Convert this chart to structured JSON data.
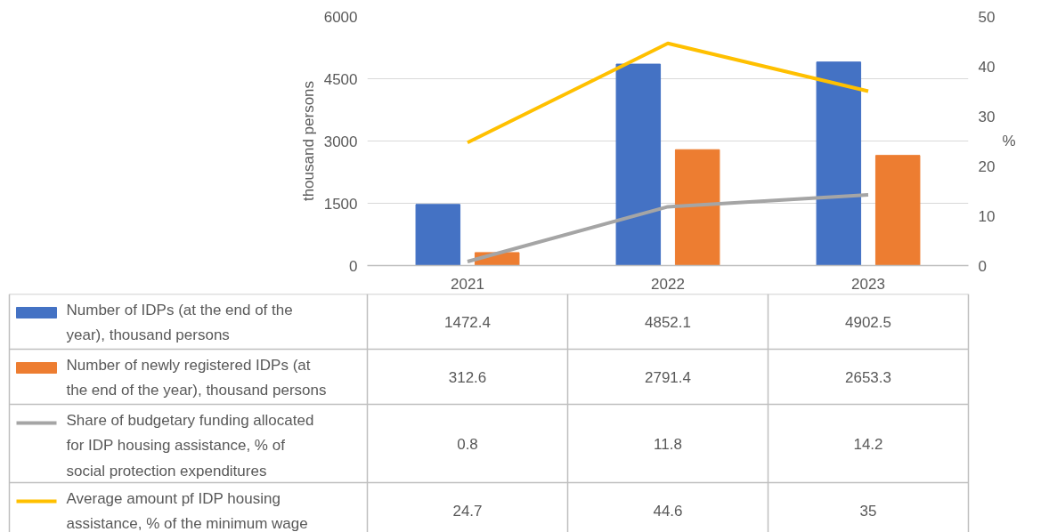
{
  "chart_data": {
    "type": "bar",
    "categories": [
      "2021",
      "2022",
      "2023"
    ],
    "ylabel": "thousand persons",
    "y2label": "%",
    "ylim": [
      0,
      6000
    ],
    "yticks": [
      0,
      1500,
      3000,
      4500,
      6000
    ],
    "y2lim": [
      0,
      50
    ],
    "y2ticks": [
      0,
      10,
      20,
      30,
      40,
      50
    ],
    "grid": "y",
    "legend": "bottom",
    "data_labels": true,
    "series": [
      {
        "name": "Number of IDPs (at the end of the year), thousand persons",
        "color": "#4472c4",
        "values": [
          1472.4,
          4852.1,
          4902.5
        ]
      },
      {
        "name": "Number of newly registered IDPs (at the end of the year), thousand persons",
        "color": "#ed7d31",
        "values": [
          312.6,
          2791.4,
          2653.3
        ]
      },
      {
        "name": "Share of budgetary funding allocated for IDP housing assistance, % of social protection expenditures",
        "type": "line",
        "axis": "y2",
        "color": "#a5a5a5",
        "values": [
          0.8,
          11.8,
          14.2
        ]
      },
      {
        "name": "Average amount pf IDP housing assistance, % of the minimum wage",
        "type": "line",
        "axis": "y2",
        "color": "#ffc000",
        "values": [
          24.7,
          44.6,
          35
        ]
      }
    ]
  }
}
